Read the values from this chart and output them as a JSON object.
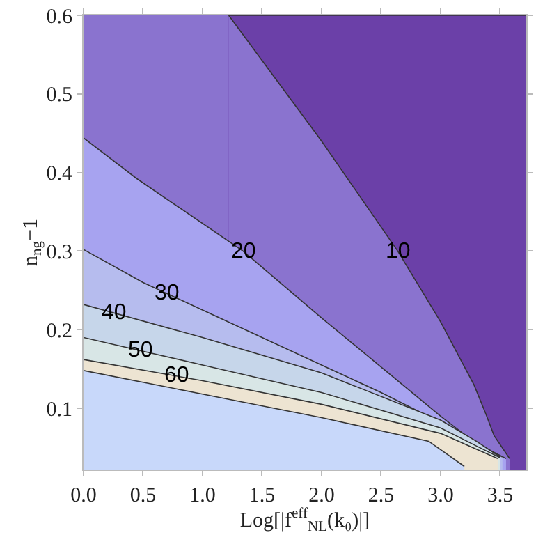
{
  "chart_data": {
    "type": "area",
    "xlabel": "Log[|f$^{eff}$$_{NL}$(k₀)|]",
    "ylabel": "n$_{ng}$−1",
    "xlim": [
      0,
      3.72
    ],
    "ylim": [
      0.022,
      0.6
    ],
    "xticks": [
      {
        "value": 0,
        "label": "0.0"
      },
      0.5,
      {
        "value": 1,
        "label": "1.0"
      },
      1.5,
      {
        "value": 2,
        "label": "2.0"
      },
      2.5,
      {
        "value": 3,
        "label": "3.0"
      },
      3.5
    ],
    "yticks": [
      0.1,
      0.2,
      0.3,
      0.4,
      0.5,
      0.6
    ],
    "bands": [
      {
        "axis": "y",
        "from": 0.022,
        "to": 0.6,
        "color": "#8a73cf"
      }
    ],
    "series": [
      {
        "color": "#6b40a8",
        "x": [
          1.22,
          3.72
        ],
        "values": [
          0.6,
          0.6
        ]
      },
      {
        "color": "#8a73cf",
        "x": [
          1.22,
          2.0,
          2.64,
          3.0,
          3.28,
          3.38,
          3.45,
          3.58
        ],
        "values": [
          0.6,
          0.44,
          0.3,
          0.21,
          0.13,
          0.093,
          0.065,
          0.036
        ]
      },
      {
        "color": "#a7a3f0",
        "x": [
          0,
          0.44,
          1.34,
          2.0,
          2.6,
          3.0,
          3.3,
          3.55
        ],
        "values": [
          0.444,
          0.393,
          0.3,
          0.215,
          0.14,
          0.09,
          0.055,
          0.036
        ]
      },
      {
        "color": "#b6bcee",
        "x": [
          0,
          0.5,
          1.0,
          1.5,
          2.0,
          2.5,
          3.0,
          3.3,
          3.52
        ],
        "values": [
          0.302,
          0.26,
          0.225,
          0.19,
          0.155,
          0.12,
          0.082,
          0.056,
          0.038
        ]
      },
      {
        "color": "#c6d6ea",
        "x": [
          0,
          1.0,
          2.0,
          3.0,
          3.3,
          3.5
        ],
        "values": [
          0.232,
          0.19,
          0.145,
          0.085,
          0.058,
          0.038
        ]
      },
      {
        "color": "#d8e6e6",
        "x": [
          0,
          1.0,
          2.0,
          3.0,
          3.3,
          3.5
        ],
        "values": [
          0.19,
          0.155,
          0.12,
          0.075,
          0.052,
          0.037
        ]
      },
      {
        "color": "#ede4d2",
        "x": [
          0,
          1.0,
          2.0,
          3.0,
          3.3,
          3.48
        ],
        "values": [
          0.162,
          0.135,
          0.105,
          0.068,
          0.048,
          0.036
        ]
      },
      {
        "color": "#c8d8fa",
        "x": [
          0,
          1.0,
          2.0,
          2.9,
          3.2
        ],
        "values": [
          0.148,
          0.118,
          0.088,
          0.058,
          0.026
        ]
      }
    ],
    "annotations": [
      {
        "text": "10",
        "x": 2.64,
        "y": 0.3
      },
      {
        "text": "20",
        "x": 1.34,
        "y": 0.3
      },
      {
        "text": "30",
        "x": 0.7,
        "y": 0.246
      },
      {
        "text": "40",
        "x": 0.26,
        "y": 0.221
      },
      {
        "text": "50",
        "x": 0.48,
        "y": 0.173
      },
      {
        "text": "60",
        "x": 0.78,
        "y": 0.141
      }
    ]
  }
}
